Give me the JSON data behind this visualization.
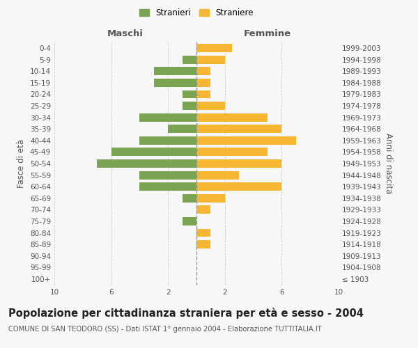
{
  "age_groups": [
    "100+",
    "95-99",
    "90-94",
    "85-89",
    "80-84",
    "75-79",
    "70-74",
    "65-69",
    "60-64",
    "55-59",
    "50-54",
    "45-49",
    "40-44",
    "35-39",
    "30-34",
    "25-29",
    "20-24",
    "15-19",
    "10-14",
    "5-9",
    "0-4"
  ],
  "birth_years": [
    "≤ 1903",
    "1904-1908",
    "1909-1913",
    "1914-1918",
    "1919-1923",
    "1924-1928",
    "1929-1933",
    "1934-1938",
    "1939-1943",
    "1944-1948",
    "1949-1953",
    "1954-1958",
    "1959-1963",
    "1964-1968",
    "1969-1973",
    "1974-1978",
    "1979-1983",
    "1984-1988",
    "1989-1993",
    "1994-1998",
    "1999-2003"
  ],
  "maschi": [
    0,
    0,
    0,
    0,
    0,
    1,
    0,
    1,
    4,
    4,
    7,
    6,
    4,
    2,
    4,
    1,
    1,
    3,
    3,
    1,
    0
  ],
  "femmine": [
    0,
    0,
    0,
    1,
    1,
    0,
    1,
    2,
    6,
    3,
    6,
    5,
    7,
    6,
    5,
    2,
    1,
    1,
    1,
    2,
    2.5
  ],
  "color_maschi_bar": "#7aa352",
  "color_femmine_bar": "#f5b731",
  "title": "Popolazione per cittadinanza straniera per età e sesso - 2004",
  "subtitle": "COMUNE DI SAN TEODORO (SS) - Dati ISTAT 1° gennaio 2004 - Elaborazione TUTTITALIA.IT",
  "xlabel_left": "Maschi",
  "xlabel_right": "Femmine",
  "ylabel_left": "Fasce di età",
  "ylabel_right": "Anni di nascita",
  "xlim": 10,
  "legend_stranieri": "Stranieri",
  "legend_straniere": "Straniere",
  "bg_color": "#f7f7f7",
  "grid_color": "#cccccc",
  "bar_height": 0.72,
  "dashed_line_color": "#999999",
  "title_fontsize": 10.5,
  "subtitle_fontsize": 7.2,
  "tick_fontsize": 7.5,
  "label_fontsize": 8.5
}
